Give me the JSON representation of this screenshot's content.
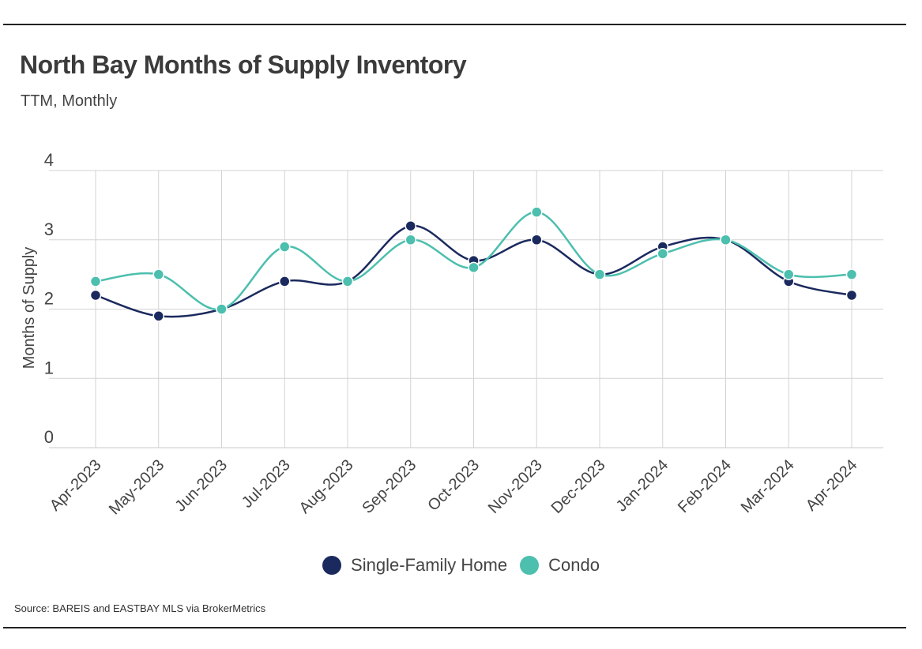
{
  "page": {
    "title": "North Bay Months of Supply Inventory",
    "subtitle": "TTM, Monthly",
    "source": "Source:  BAREIS and EASTBAY MLS via BrokerMetrics"
  },
  "chart_data": {
    "type": "line",
    "title": "North Bay Months of Supply Inventory",
    "subtitle": "TTM, Monthly",
    "xlabel": "",
    "ylabel": "Months of Supply",
    "ylim": [
      0,
      4
    ],
    "yticks": [
      0,
      1,
      2,
      3,
      4
    ],
    "grid": true,
    "legend": "bottom",
    "smooth": true,
    "categories": [
      "Apr-2023",
      "May-2023",
      "Jun-2023",
      "Jul-2023",
      "Aug-2023",
      "Sep-2023",
      "Oct-2023",
      "Nov-2023",
      "Dec-2023",
      "Jan-2024",
      "Feb-2024",
      "Mar-2024",
      "Apr-2024"
    ],
    "series": [
      {
        "name": "Single-Family Home",
        "color": "#1b2a5e",
        "values": [
          2.2,
          1.9,
          2.0,
          2.4,
          2.4,
          3.2,
          2.7,
          3.0,
          2.5,
          2.9,
          3.0,
          2.4,
          2.2
        ]
      },
      {
        "name": "Condo",
        "color": "#4cbfae",
        "values": [
          2.4,
          2.5,
          2.0,
          2.9,
          2.4,
          3.0,
          2.6,
          3.4,
          2.5,
          2.8,
          3.0,
          2.5,
          2.5
        ]
      }
    ]
  }
}
